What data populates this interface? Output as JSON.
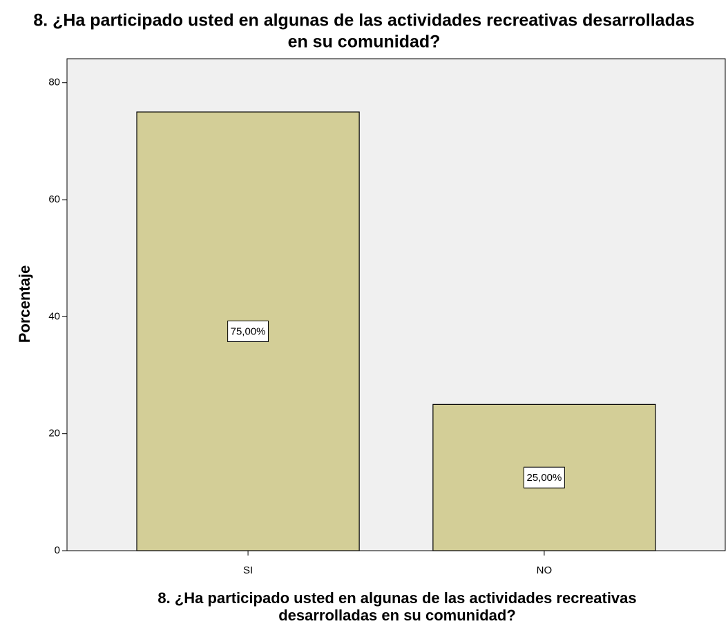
{
  "chart_data": {
    "type": "bar",
    "title": [
      "8. ¿Ha participado usted en algunas de las actividades recreativas desarrolladas",
      "en su comunidad?"
    ],
    "x_label": [
      "8. ¿Ha participado usted en algunas de las actividades recreativas",
      "desarrolladas en su comunidad?"
    ],
    "y_label": "Porcentaje",
    "categories": [
      "SI",
      "NO"
    ],
    "values": [
      75,
      25
    ],
    "value_labels": [
      "75,00%",
      "25,00%"
    ],
    "color": "#d3ce97",
    "ylim": [
      0,
      84.1
    ],
    "yticks": [
      0,
      20,
      40,
      60,
      80
    ]
  }
}
